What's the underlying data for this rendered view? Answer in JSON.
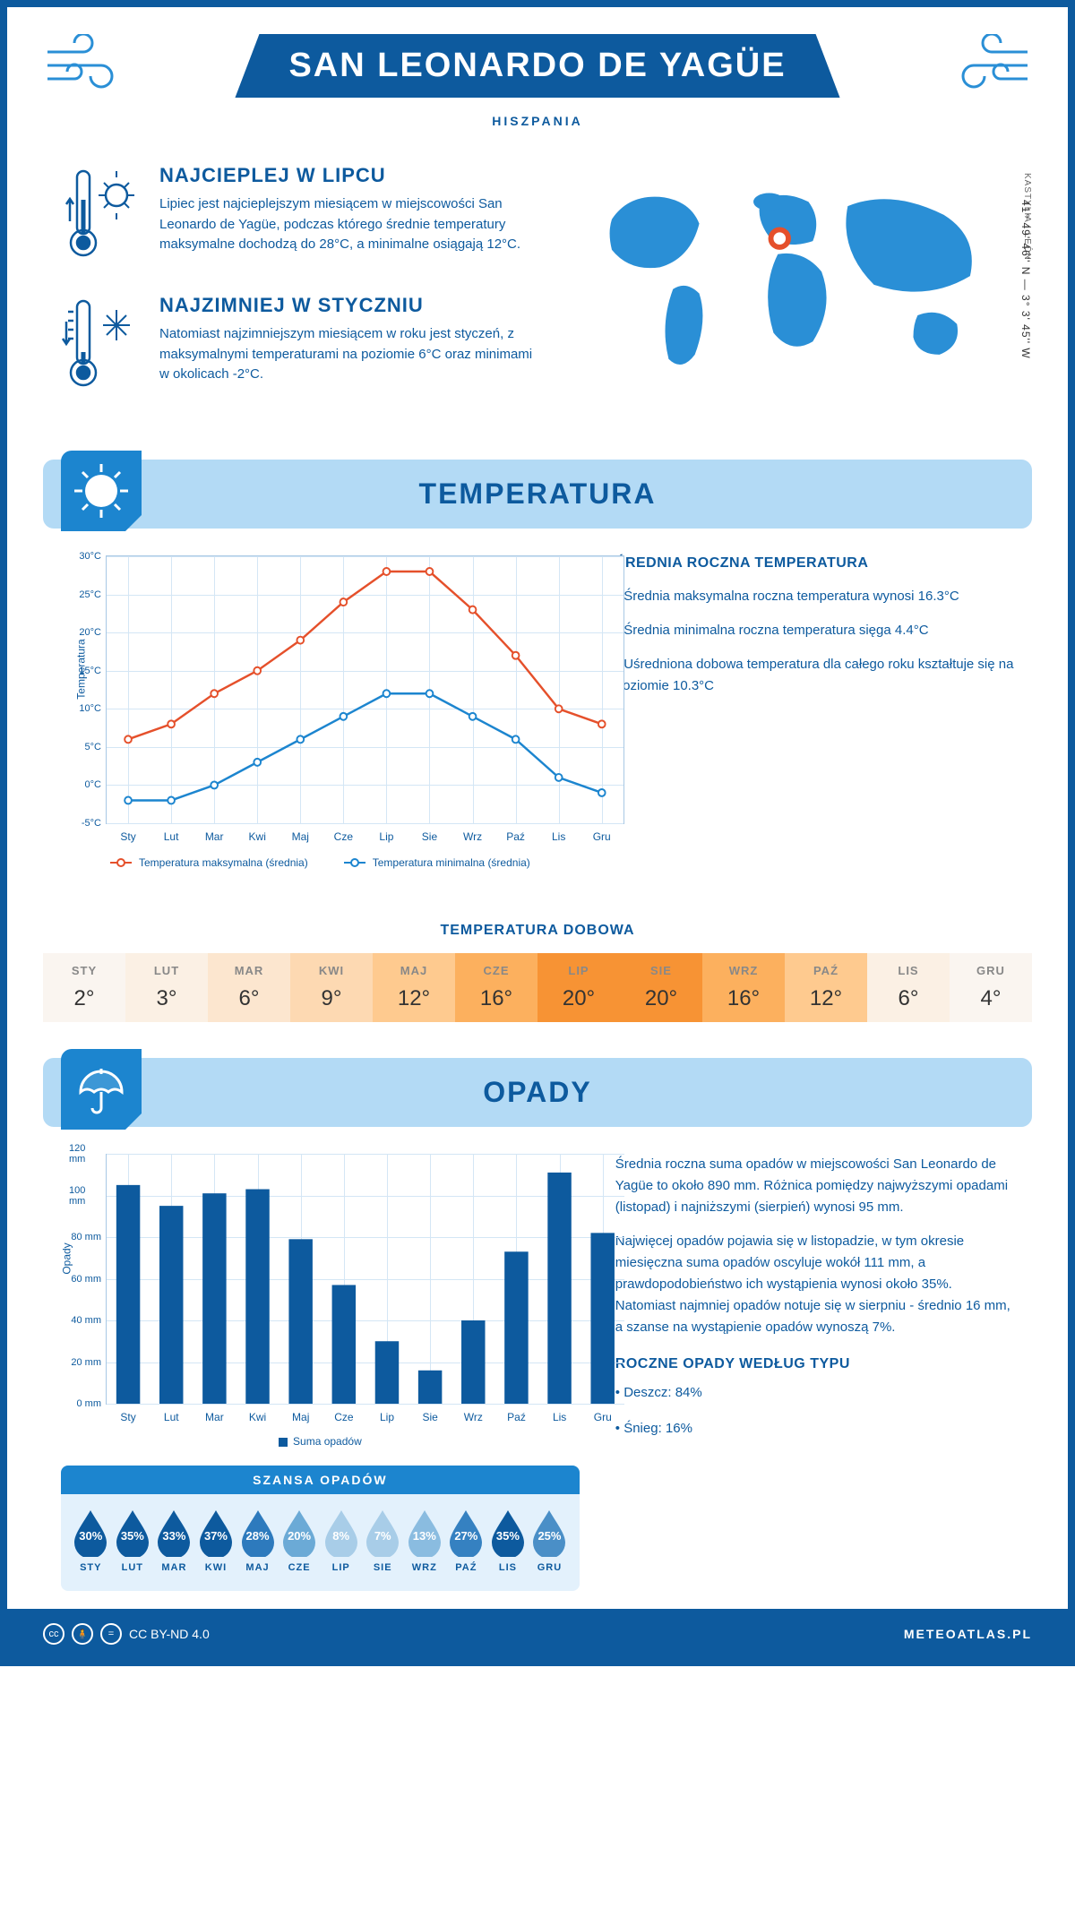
{
  "header": {
    "city": "SAN LEONARDO DE YAGÜE",
    "country": "HISZPANIA"
  },
  "intro": {
    "hot": {
      "title": "NAJCIEPLEJ W LIPCU",
      "text": "Lipiec jest najcieplejszym miesiącem w miejscowości San Leonardo de Yagüe, podczas którego średnie temperatury maksymalne dochodzą do 28°C, a minimalne osiągają 12°C."
    },
    "cold": {
      "title": "NAJZIMNIEJ W STYCZNIU",
      "text": "Natomiast najzimniejszym miesiącem w roku jest styczeń, z maksymalnymi temperaturami na poziomie 6°C oraz minimami w okolicach -2°C."
    },
    "coords": "41° 49' 46'' N — 3° 3' 45'' W",
    "region": "KASTYLIA I LEÓN"
  },
  "temperature": {
    "section_title": "TEMPERATURA",
    "y_label": "Temperatura",
    "y_ticks": [
      "-5°C",
      "0°C",
      "5°C",
      "10°C",
      "15°C",
      "20°C",
      "25°C",
      "30°C"
    ],
    "y_min": -5,
    "y_max": 30,
    "months": [
      "Sty",
      "Lut",
      "Mar",
      "Kwi",
      "Maj",
      "Cze",
      "Lip",
      "Sie",
      "Wrz",
      "Paź",
      "Lis",
      "Gru"
    ],
    "series_max": {
      "label": "Temperatura maksymalna (średnia)",
      "color": "#e5502b",
      "values": [
        6,
        8,
        12,
        15,
        19,
        24,
        28,
        28,
        23,
        17,
        10,
        8
      ]
    },
    "series_min": {
      "label": "Temperatura minimalna (średnia)",
      "color": "#1c85cf",
      "values": [
        -2,
        -2,
        0,
        3,
        6,
        9,
        12,
        12,
        9,
        6,
        1,
        -1
      ]
    },
    "info_title": "ŚREDNIA ROCZNA TEMPERATURA",
    "info_lines": [
      "• Średnia maksymalna roczna temperatura wynosi 16.3°C",
      "• Średnia minimalna roczna temperatura sięga 4.4°C",
      "• Uśredniona dobowa temperatura dla całego roku kształtuje się na poziomie 10.3°C"
    ],
    "daily_title": "TEMPERATURA DOBOWA",
    "daily": {
      "months": [
        "STY",
        "LUT",
        "MAR",
        "KWI",
        "MAJ",
        "CZE",
        "LIP",
        "SIE",
        "WRZ",
        "PAŹ",
        "LIS",
        "GRU"
      ],
      "values": [
        "2°",
        "3°",
        "6°",
        "9°",
        "12°",
        "16°",
        "20°",
        "20°",
        "16°",
        "12°",
        "6°",
        "4°"
      ],
      "colors": [
        "#faf5f0",
        "#fbf0e4",
        "#fce6cf",
        "#fdd9b2",
        "#feca8f",
        "#fcb05e",
        "#f79334",
        "#f79334",
        "#fcb05e",
        "#feca8f",
        "#fbf0e4",
        "#faf5f0"
      ]
    }
  },
  "precipitation": {
    "section_title": "OPADY",
    "y_label": "Opady",
    "y_ticks": [
      "0 mm",
      "20 mm",
      "40 mm",
      "60 mm",
      "80 mm",
      "100 mm",
      "120 mm"
    ],
    "y_max": 120,
    "months": [
      "Sty",
      "Lut",
      "Mar",
      "Kwi",
      "Maj",
      "Cze",
      "Lip",
      "Sie",
      "Wrz",
      "Paź",
      "Lis",
      "Gru"
    ],
    "values": [
      105,
      95,
      101,
      103,
      79,
      57,
      30,
      16,
      40,
      73,
      111,
      82
    ],
    "bar_color": "#0d5a9e",
    "legend": "Suma opadów",
    "text1": "Średnia roczna suma opadów w miejscowości San Leonardo de Yagüe to około 890 mm. Różnica pomiędzy najwyższymi opadami (listopad) i najniższymi (sierpień) wynosi 95 mm.",
    "text2": "Najwięcej opadów pojawia się w listopadzie, w tym okresie miesięczna suma opadów oscyluje wokół 111 mm, a prawdopodobieństwo ich wystąpienia wynosi około 35%. Natomiast najmniej opadów notuje się w sierpniu - średnio 16 mm, a szanse na wystąpienie opadów wynoszą 7%.",
    "chance_title": "SZANSA OPADÓW",
    "chance": {
      "months": [
        "STY",
        "LUT",
        "MAR",
        "KWI",
        "MAJ",
        "CZE",
        "LIP",
        "SIE",
        "WRZ",
        "PAŹ",
        "LIS",
        "GRU"
      ],
      "values": [
        "30%",
        "35%",
        "33%",
        "37%",
        "28%",
        "20%",
        "8%",
        "7%",
        "13%",
        "27%",
        "35%",
        "25%"
      ],
      "colors": [
        "#0d5a9e",
        "#0d5a9e",
        "#0d5a9e",
        "#0d5a9e",
        "#2d7abd",
        "#6baad6",
        "#a8cde8",
        "#a8cde8",
        "#8abce0",
        "#3581c1",
        "#0d5a9e",
        "#4a8fc7"
      ]
    },
    "type_title": "ROCZNE OPADY WEDŁUG TYPU",
    "type_lines": [
      "• Deszcz: 84%",
      "• Śnieg: 16%"
    ]
  },
  "footer": {
    "license": "CC BY-ND 4.0",
    "site": "METEOATLAS.PL"
  }
}
